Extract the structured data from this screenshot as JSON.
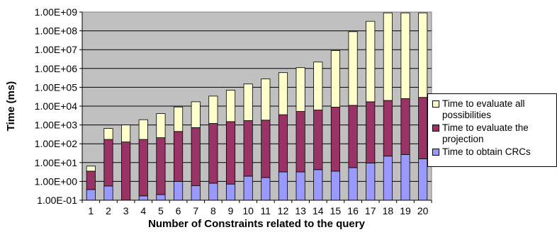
{
  "chart_data": {
    "type": "bar",
    "stacked": true,
    "log_scale_y": true,
    "title": "",
    "xlabel": "Number of Constraints related to the query",
    "ylabel": "Time (ms)",
    "ylim": [
      0.1,
      1000000000
    ],
    "y_ticks": [
      "1.00E-01",
      "1.00E+00",
      "1.00E+01",
      "1.00E+02",
      "1.00E+03",
      "1.00E+04",
      "1.00E+05",
      "1.00E+06",
      "1.00E+07",
      "1.00E+08",
      "1.00E+09"
    ],
    "categories": [
      "1",
      "2",
      "3",
      "4",
      "5",
      "6",
      "7",
      "8",
      "9",
      "10",
      "11",
      "12",
      "13",
      "14",
      "15",
      "16",
      "17",
      "18",
      "19",
      "20"
    ],
    "series": [
      {
        "name": "Time to obtain CRCs",
        "color": "#9999ff",
        "values": [
          0.37,
          0.57,
          0.1,
          0.17,
          0.2,
          1.0,
          0.6,
          0.8,
          0.72,
          1.9,
          1.6,
          3.2,
          3.2,
          4.2,
          3.5,
          5.4,
          9.5,
          22,
          27,
          16
        ]
      },
      {
        "name": "Time to evaluate the projection",
        "color": "#993366",
        "values": [
          3.5,
          170,
          125,
          170,
          210,
          450,
          720,
          1200,
          1500,
          1700,
          1800,
          3500,
          5200,
          6200,
          8800,
          11000,
          17000,
          20000,
          25000,
          29000
        ]
      },
      {
        "name": "Time to evaluate all possibilities",
        "color": "#ffffcc",
        "values": [
          6.5,
          650,
          1000,
          1900,
          4000,
          9000,
          17000,
          34000,
          70000,
          150000,
          280000,
          600000,
          1100000,
          2200000,
          9000000,
          90000000,
          320000000,
          900000000,
          900000000,
          900000000
        ]
      }
    ],
    "grid": true,
    "plot_background": "#c0c0c0",
    "legend_position": "right"
  }
}
